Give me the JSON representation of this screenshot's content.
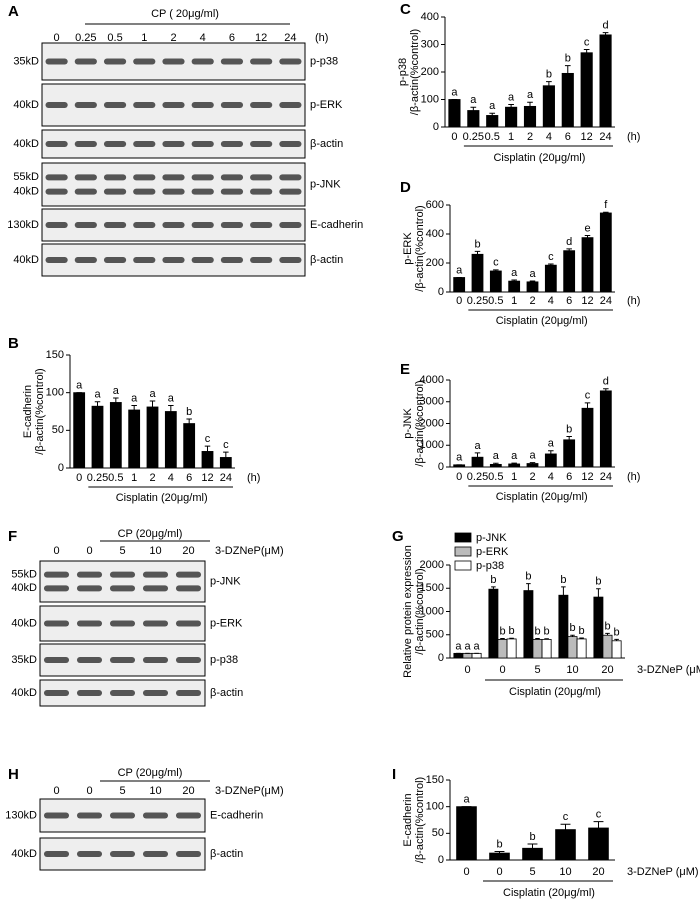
{
  "blots": [
    {
      "panel": "A",
      "header": "CP ( 20μg/ml)",
      "lanes": [
        "0",
        "0.25",
        "0.5",
        "1",
        "2",
        "4",
        "6",
        "12",
        "24"
      ],
      "lane_unit": "(h)",
      "rows": [
        {
          "label": "p-p38",
          "markers": [
            "35kD"
          ]
        },
        {
          "label": "p-ERK",
          "markers": [
            "40kD"
          ]
        },
        {
          "label": "β-actin",
          "markers": [
            "40kD"
          ]
        },
        {
          "label": "p-JNK",
          "markers": [
            "55kD",
            "40kD"
          ]
        },
        {
          "label": "E-cadherin",
          "markers": [
            "130kD"
          ]
        },
        {
          "label": "β-actin",
          "markers": [
            "40kD"
          ]
        }
      ]
    },
    {
      "panel": "F",
      "header": "CP (20μg/ml)",
      "lanes": [
        "0",
        "0",
        "5",
        "10",
        "20"
      ],
      "lane_unit": "3-DZNeP(μM)",
      "rows": [
        {
          "label": "p-JNK",
          "markers": [
            "55kD",
            "40kD"
          ]
        },
        {
          "label": "p-ERK",
          "markers": [
            "40kD"
          ]
        },
        {
          "label": "p-p38",
          "markers": [
            "35kD"
          ]
        },
        {
          "label": "β-actin",
          "markers": [
            "40kD"
          ]
        }
      ]
    },
    {
      "panel": "H",
      "header": "CP (20μg/ml)",
      "lanes": [
        "0",
        "0",
        "5",
        "10",
        "20"
      ],
      "lane_unit": "3-DZNeP(μM)",
      "rows": [
        {
          "label": "E-cadherin",
          "markers": [
            "130kD"
          ]
        },
        {
          "label": "β-actin",
          "markers": [
            "40kD"
          ]
        }
      ]
    }
  ],
  "chart_data": [
    {
      "type": "bar",
      "panel": "C",
      "ylabel": [
        "p-p38",
        "/β-actin(%control)"
      ],
      "xlabel": "Cisplatin (20μg/ml)",
      "x_unit": "(h)",
      "categories": [
        "0",
        "0.25",
        "0.5",
        "1",
        "2",
        "4",
        "6",
        "12",
        "24"
      ],
      "color": "#000000",
      "values": [
        100,
        60,
        42,
        72,
        75,
        150,
        195,
        270,
        335
      ],
      "errors": [
        0,
        12,
        8,
        10,
        15,
        15,
        28,
        12,
        8
      ],
      "letters": [
        "a",
        "a",
        "a",
        "a",
        "a",
        "b",
        "b",
        "c",
        "d"
      ],
      "ylim": [
        0,
        400
      ],
      "yticks": [
        0,
        100,
        200,
        300,
        400
      ]
    },
    {
      "type": "bar",
      "panel": "D",
      "ylabel": [
        "p-ERK",
        "/β-actin(%control)"
      ],
      "xlabel": "Cisplatin (20μg/ml)",
      "x_unit": "(h)",
      "categories": [
        "0",
        "0.25",
        "0.5",
        "1",
        "2",
        "4",
        "6",
        "12",
        "24"
      ],
      "color": "#000000",
      "values": [
        100,
        260,
        145,
        75,
        70,
        185,
        285,
        375,
        545
      ],
      "errors": [
        0,
        20,
        8,
        8,
        6,
        8,
        12,
        15,
        5
      ],
      "letters": [
        "a",
        "b",
        "c",
        "a",
        "a",
        "c",
        "d",
        "e",
        "f"
      ],
      "ylim": [
        0,
        600
      ],
      "yticks": [
        0,
        200,
        400,
        600
      ]
    },
    {
      "type": "bar",
      "panel": "E",
      "ylabel": [
        "p-JNK",
        "/β-actin(%control)"
      ],
      "xlabel": "Cisplatin (20μg/ml)",
      "x_unit": "(h)",
      "categories": [
        "0",
        "0.25",
        "0.5",
        "1",
        "2",
        "4",
        "6",
        "12",
        "24"
      ],
      "color": "#000000",
      "values": [
        100,
        450,
        120,
        140,
        160,
        600,
        1250,
        2700,
        3500
      ],
      "errors": [
        0,
        200,
        50,
        40,
        40,
        150,
        150,
        250,
        100
      ],
      "letters": [
        "a",
        "a",
        "a",
        "a",
        "a",
        "a",
        "b",
        "c",
        "d"
      ],
      "ylim": [
        0,
        4000
      ],
      "yticks": [
        0,
        1000,
        2000,
        3000,
        4000
      ]
    },
    {
      "type": "bar",
      "panel": "B",
      "ylabel": [
        "E-cadherin",
        "/β-actin(%control)"
      ],
      "xlabel": "Cisplatin (20μg/ml)",
      "x_unit": "(h)",
      "categories": [
        "0",
        "0.25",
        "0.5",
        "1",
        "2",
        "4",
        "6",
        "12",
        "24"
      ],
      "color": "#000000",
      "values": [
        100,
        82,
        87,
        77,
        81,
        75,
        59,
        22,
        14
      ],
      "errors": [
        0,
        6,
        6,
        6,
        8,
        8,
        6,
        7,
        7
      ],
      "letters": [
        "a",
        "a",
        "a",
        "a",
        "a",
        "a",
        "b",
        "c",
        "c"
      ],
      "ylim": [
        0,
        150
      ],
      "yticks": [
        0,
        50,
        100,
        150
      ]
    },
    {
      "type": "grouped_bar",
      "panel": "G",
      "ylabel": [
        "Relative protein expression",
        "/β-actin(%control)"
      ],
      "xlabel": "Cisplatin (20μg/ml)",
      "x_unit": "3-DZNeP (μM)",
      "categories": [
        "0",
        "0",
        "5",
        "10",
        "20"
      ],
      "series": [
        {
          "name": "p-JNK",
          "color": "#000000",
          "values": [
            100,
            1480,
            1450,
            1350,
            1310
          ],
          "errors": [
            0,
            50,
            150,
            180,
            180
          ],
          "letters": [
            "a",
            "b",
            "b",
            "b",
            "b"
          ]
        },
        {
          "name": "p-ERK",
          "color": "#bbbbbb",
          "values": [
            100,
            400,
            400,
            460,
            490
          ],
          "errors": [
            0,
            20,
            20,
            30,
            40
          ],
          "letters": [
            "a",
            "b",
            "b",
            "b",
            "b"
          ]
        },
        {
          "name": "p-p38",
          "color": "#ffffff",
          "values": [
            100,
            410,
            400,
            410,
            370
          ],
          "errors": [
            0,
            15,
            15,
            20,
            30
          ],
          "letters": [
            "a",
            "b",
            "b",
            "b",
            "b"
          ]
        }
      ],
      "ylim": [
        0,
        2000
      ],
      "yticks": [
        0,
        500,
        1000,
        1500,
        2000
      ]
    },
    {
      "type": "bar",
      "panel": "I",
      "ylabel": [
        "E-cadherin",
        "/β-actin(%control)"
      ],
      "xlabel": "Cisplatin (20μg/ml)",
      "x_unit": "3-DZNeP (μM)",
      "categories": [
        "0",
        "0",
        "5",
        "10",
        "20"
      ],
      "color": "#000000",
      "values": [
        100,
        13,
        22,
        57,
        60
      ],
      "errors": [
        0,
        3,
        8,
        10,
        12
      ],
      "letters": [
        "a",
        "b",
        "b",
        "c",
        "c"
      ],
      "ylim": [
        0,
        150
      ],
      "yticks": [
        0,
        50,
        100,
        150
      ]
    }
  ]
}
